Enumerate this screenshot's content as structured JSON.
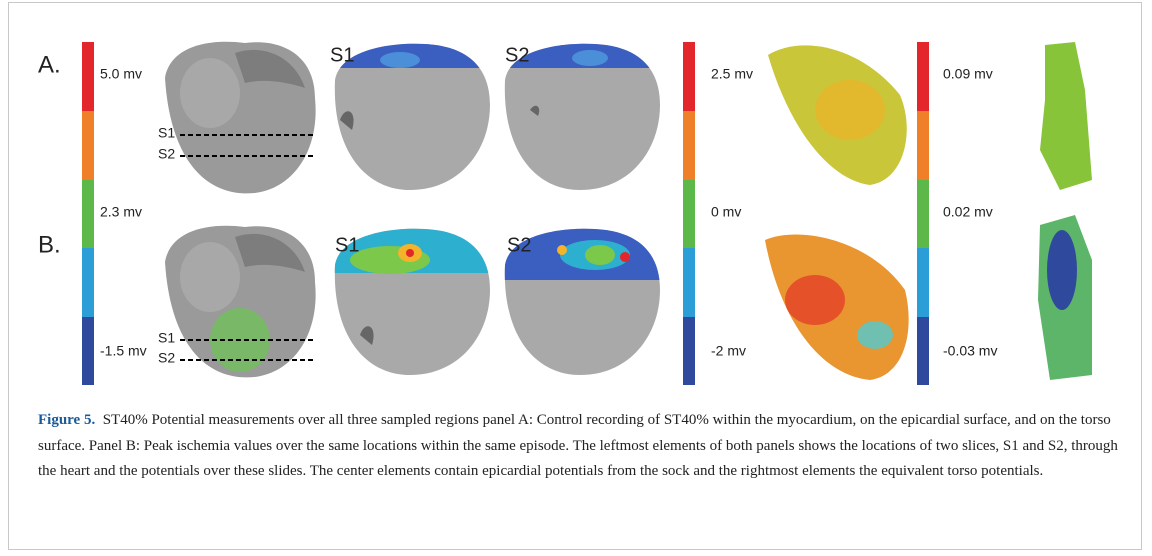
{
  "figure": {
    "panels": [
      {
        "label": "A.",
        "slice_titles": [
          "S1",
          "S2"
        ],
        "section_markers": [
          "S1",
          "S2"
        ]
      },
      {
        "label": "B.",
        "slice_titles": [
          "S1",
          "S2"
        ],
        "section_markers": [
          "S1",
          "S2"
        ]
      }
    ],
    "colorbars": [
      {
        "labels": [
          "5.0 mv",
          "2.3 mv",
          "-1.5 mv"
        ]
      },
      {
        "labels": [
          "2.5 mv",
          "0 mv",
          "-2 mv"
        ]
      },
      {
        "labels": [
          "0.09 mv",
          "0.02 mv",
          "-0.03 mv"
        ]
      }
    ]
  },
  "caption": {
    "label": "Figure 5.",
    "text": "ST40% Potential measurements over all three sampled regions panel A: Control recording of ST40% within the myocardium, on the epicardial surface, and on the torso surface. Panel B: Peak ischemia values over the same locations within the same episode. The leftmost elements of both panels shows the locations of two slices, S1 and S2, through the heart and the potentials over these slides. The center elements contain epicardial potentials from the sock and the rightmost elements the equivalent torso potentials."
  }
}
